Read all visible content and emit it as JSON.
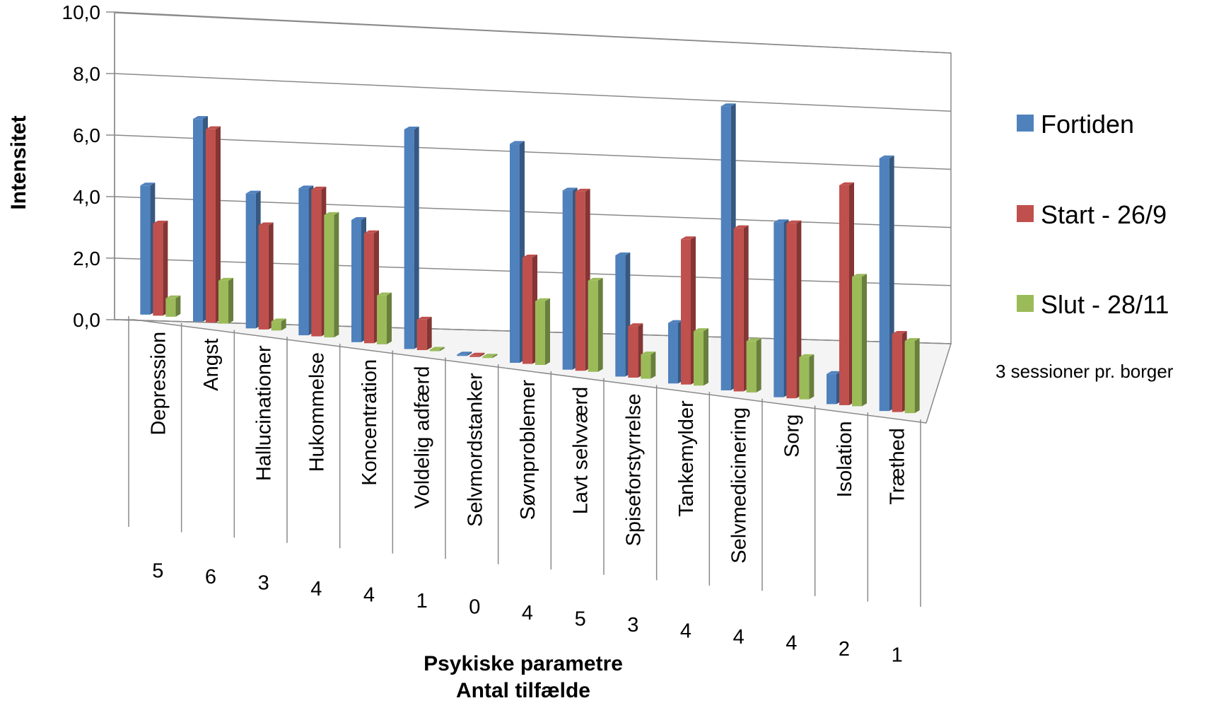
{
  "chart_data": {
    "type": "bar",
    "ylabel": "Intensitet",
    "xlabel": "Psykiske parametre",
    "xlabel2": "Antal tilfælde",
    "ylim": [
      0,
      10
    ],
    "yticks": [
      "0,0",
      "2,0",
      "4,0",
      "6,0",
      "8,0",
      "10,0"
    ],
    "categories": [
      "Depression",
      "Angst",
      "Hallucinationer",
      "Hukommelse",
      "Koncentration",
      "Voldelig adfærd",
      "Selvmordstanker",
      "Søvnproblemer",
      "Lavt selvværd",
      "Spiseforstyrrelse",
      "Tankemylder",
      "Selvmedicinering",
      "Sorg",
      "Isolation",
      "Træthed"
    ],
    "counts": [
      "5",
      "6",
      "3",
      "4",
      "4",
      "1",
      "0",
      "4",
      "5",
      "3",
      "4",
      "4",
      "4",
      "2",
      "1"
    ],
    "series": [
      {
        "name": "Fortiden",
        "color": "#4F81BD",
        "values": [
          4.2,
          6.6,
          4.4,
          4.8,
          4.0,
          7.2,
          0.0,
          7.2,
          5.9,
          4.0,
          2.0,
          9.4,
          5.8,
          1.0,
          8.4
        ]
      },
      {
        "name": "Start - 26/9",
        "color": "#C0504D",
        "values": [
          3.0,
          6.3,
          3.4,
          4.8,
          3.6,
          1.0,
          0.0,
          3.5,
          5.9,
          1.7,
          4.8,
          5.4,
          5.8,
          7.3,
          2.6
        ]
      },
      {
        "name": "Slut - 28/11",
        "color": "#9BBB59",
        "values": [
          0.6,
          1.4,
          0.3,
          4.0,
          1.6,
          0.0,
          0.0,
          2.1,
          3.0,
          0.8,
          1.8,
          1.7,
          1.4,
          4.3,
          2.4
        ]
      }
    ],
    "legend_position": "right",
    "grid": true,
    "note": "3 sessioner pr. borger"
  }
}
